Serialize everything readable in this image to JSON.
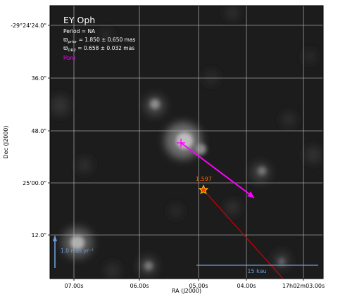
{
  "chart_data": {
    "type": "image",
    "title": "EY Oph",
    "info_lines": [
      {
        "prefix": "Period = NA",
        "sub": "",
        "suffix": ""
      },
      {
        "prefix": "ϖ",
        "sub": "prior",
        "suffix": " = 1.850 ± 0.650 mas"
      },
      {
        "prefix": "ϖ",
        "sub": "DR2",
        "suffix": " = 0.658 ± 0.032 mas"
      }
    ],
    "pm_label": {
      "prefix": "μ",
      "sub": "DR2"
    },
    "xlabel": "RA (J2000)",
    "ylabel": "Dec (J2000)",
    "x_ticks": [
      "07.00s",
      "06.00s",
      "05.00s",
      "04.00s",
      "17h02m03.00s"
    ],
    "y_ticks": [
      "-29°24'24.0\"",
      "36.0\"",
      "48.0\"",
      "25'00.0\"",
      "12.0\""
    ],
    "star_label": "1.597",
    "pm_scale_label": "1.0 mas yr⁻¹",
    "scale_bar_label": "15 kau",
    "colors": {
      "pm_arrow": "#ff00ff",
      "pm_label": "#ff00ff",
      "offset_line": "#cc0000",
      "star_fill": "#ff3300",
      "star_edge": "#ffcc00",
      "star_label": "#ff6600",
      "scale_bar": "#6a9ed8",
      "grid": "#c8c8c8",
      "text": "#ffffff"
    },
    "grid": true
  }
}
